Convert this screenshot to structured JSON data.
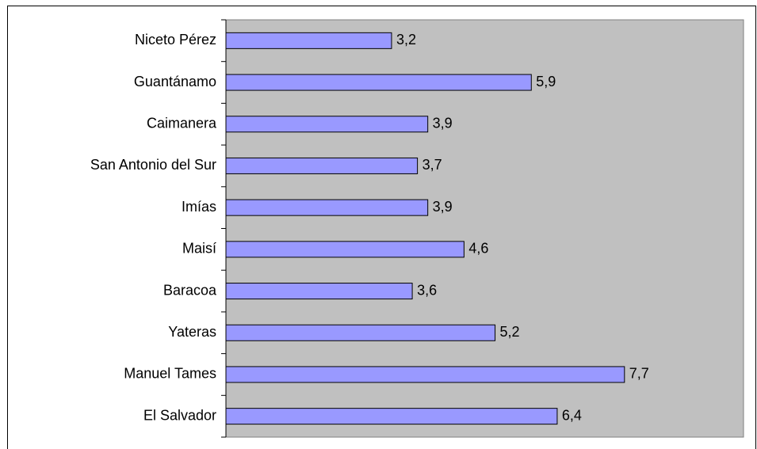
{
  "chart_data": {
    "type": "bar",
    "orientation": "horizontal",
    "categories": [
      "Niceto Pérez",
      "Guantánamo",
      "Caimanera",
      "San Antonio del Sur",
      "Imías",
      "Maisí",
      "Baracoa",
      "Yateras",
      "Manuel Tames",
      "El Salvador"
    ],
    "values": [
      3.2,
      5.9,
      3.9,
      3.7,
      3.9,
      4.6,
      3.6,
      5.2,
      7.7,
      6.4
    ],
    "value_labels": [
      "3,2",
      "5,9",
      "3,9",
      "3,7",
      "3,9",
      "4,6",
      "3,6",
      "5,2",
      "7,7",
      "6,4"
    ],
    "color": "#9999ff",
    "plot_background": "#c0c0c0",
    "xlim": [
      0,
      10
    ]
  }
}
